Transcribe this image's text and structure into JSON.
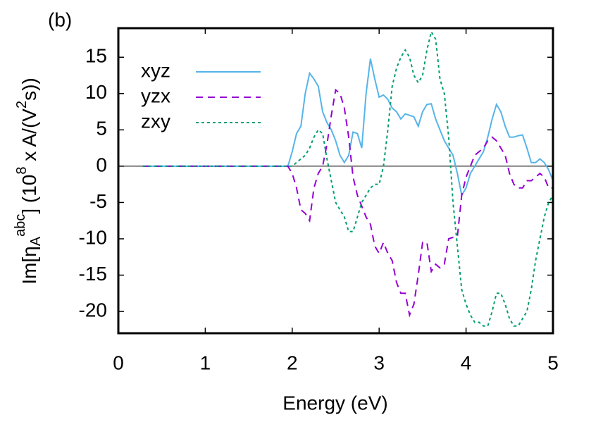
{
  "chart_data": {
    "type": "line",
    "panel_label": "(b)",
    "xlabel": "Energy (eV)",
    "ylabel": [
      "Im[η",
      "A",
      "abc",
      "] (10",
      "8",
      " x A/(V",
      "2",
      "s))"
    ],
    "xlim": [
      0,
      5
    ],
    "ylim": [
      -23,
      19
    ],
    "xticks": [
      0,
      1,
      2,
      3,
      4,
      5
    ],
    "yticks": [
      -20,
      -15,
      -10,
      -5,
      0,
      5,
      10,
      15
    ],
    "zero_line": true,
    "legend": "upper-left",
    "x": [
      0.28,
      1.9,
      1.95,
      2,
      2.05,
      2.1,
      2.15,
      2.2,
      2.25,
      2.3,
      2.35,
      2.4,
      2.45,
      2.5,
      2.55,
      2.6,
      2.65,
      2.7,
      2.75,
      2.8,
      2.85,
      2.9,
      2.95,
      3,
      3.05,
      3.1,
      3.15,
      3.2,
      3.25,
      3.3,
      3.35,
      3.4,
      3.45,
      3.5,
      3.55,
      3.6,
      3.65,
      3.7,
      3.75,
      3.8,
      3.85,
      3.9,
      3.95,
      4,
      4.05,
      4.1,
      4.15,
      4.2,
      4.25,
      4.3,
      4.35,
      4.4,
      4.45,
      4.5,
      4.55,
      4.6,
      4.65,
      4.7,
      4.75,
      4.8,
      4.85,
      4.9,
      4.95,
      5
    ],
    "series": [
      {
        "name": "xyz",
        "color": "#56b4e9",
        "style": "solid",
        "values": [
          0,
          0,
          0,
          2,
          4.5,
          5.5,
          10,
          12.8,
          12,
          11,
          7.5,
          6,
          5,
          3.5,
          1.5,
          0.5,
          1.5,
          4.7,
          4.5,
          2.5,
          10,
          14.8,
          12,
          9.5,
          9.8,
          9.2,
          8,
          7.5,
          6.5,
          7.2,
          7,
          6.8,
          5.5,
          7.5,
          8.5,
          8.6,
          6.5,
          5,
          3.5,
          2.5,
          1.5,
          -1,
          -4,
          -3,
          -1,
          0,
          1,
          2,
          4,
          6.5,
          8.5,
          7.5,
          5.5,
          4,
          4,
          4.2,
          4.3,
          2.5,
          0.5,
          0.5,
          1,
          0.5,
          -0.5,
          -2
        ]
      },
      {
        "name": "yzx",
        "color": "#9400d3",
        "style": "dashed",
        "values": [
          0,
          0,
          0,
          -1,
          -3,
          -6,
          -6.5,
          -7.5,
          -3,
          -1,
          0,
          3,
          7,
          10.5,
          10,
          8,
          4,
          -1.5,
          -4,
          -5.5,
          -7,
          -8,
          -11,
          -12,
          -10.5,
          -12,
          -13,
          -16,
          -17.5,
          -17.5,
          -20.5,
          -19,
          -15,
          -10.5,
          -10.5,
          -14.5,
          -13.5,
          -14,
          -13.5,
          -10,
          -9.8,
          -9.7,
          -4,
          -1.5,
          0,
          1.5,
          2,
          2.5,
          3.5,
          4,
          3.5,
          2.5,
          1.5,
          -1,
          -2.5,
          -3,
          -3,
          -2,
          -2,
          -1.5,
          -1,
          -1.5,
          -3,
          -3
        ]
      },
      {
        "name": "zxy",
        "color": "#009e73",
        "style": "dotted",
        "values": [
          0,
          0,
          0,
          0,
          0.5,
          1,
          1.5,
          2.5,
          4,
          5,
          4.5,
          1,
          -2,
          -5,
          -6,
          -7,
          -9,
          -9,
          -7,
          -5,
          -4,
          -3,
          -2.5,
          -2.5,
          0,
          5,
          11,
          13.5,
          15,
          16,
          15,
          12.5,
          11.5,
          12.5,
          16,
          18.5,
          17.5,
          12,
          10,
          4,
          -5,
          -11,
          -17,
          -19,
          -20.5,
          -21.5,
          -21.5,
          -22,
          -22,
          -20,
          -17.5,
          -17.5,
          -19,
          -21,
          -22,
          -22,
          -21,
          -20,
          -17,
          -13,
          -10,
          -7,
          -5,
          -4
        ]
      }
    ]
  }
}
